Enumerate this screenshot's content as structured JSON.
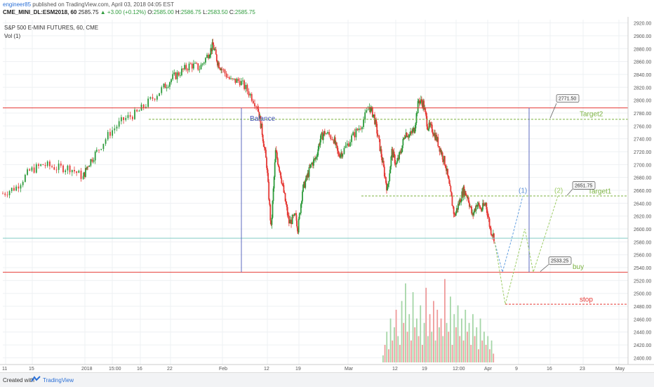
{
  "header": {
    "author": "engineer85",
    "published": " published on TradingView.com, April 03, 2018 04:05 EST",
    "symbol": "CME_MINI_DL:ESM2018, 60",
    "last": "2585.75",
    "change": "▲ +3.00 (+0.12%)",
    "o_label": "O:",
    "o_value": "2585.00",
    "h_label": "H:",
    "h_value": "2586.75",
    "l_label": "L:",
    "l_value": "2583.50",
    "c_label": "C:",
    "c_value": "2585.75"
  },
  "chart_data": {
    "type": "candlestick",
    "title": "S&P 500 E-MINI FUTURES, 60, CME",
    "volume_label": "Vol (1)",
    "ylim": [
      2395,
      2925
    ],
    "y_ticks": [
      "2920.00",
      "2900.00",
      "2880.00",
      "2860.00",
      "2840.00",
      "2820.00",
      "2800.00",
      "2780.00",
      "2760.00",
      "2740.00",
      "2720.00",
      "2700.00",
      "2680.00",
      "2660.00",
      "2640.00",
      "2620.00",
      "2600.00",
      "2580.00",
      "2560.00",
      "2540.00",
      "2520.00",
      "2500.00",
      "2480.00",
      "2460.00",
      "2440.00",
      "2420.00",
      "2400.00"
    ],
    "x_ticks": [
      "11",
      "15",
      "2018",
      "15:00",
      "16",
      "22",
      "Feb",
      "12",
      "19",
      "Mar",
      "12",
      "19",
      "12:00",
      "Apr",
      "9",
      "16",
      "23",
      "May"
    ],
    "price_path": [
      [
        0,
        2655
      ],
      [
        0.03,
        2665
      ],
      [
        0.06,
        2690
      ],
      [
        0.09,
        2700
      ],
      [
        0.12,
        2695
      ],
      [
        0.15,
        2695
      ],
      [
        0.18,
        2680
      ],
      [
        0.19,
        2700
      ],
      [
        0.21,
        2720
      ],
      [
        0.24,
        2750
      ],
      [
        0.27,
        2770
      ],
      [
        0.3,
        2780
      ],
      [
        0.33,
        2800
      ],
      [
        0.36,
        2820
      ],
      [
        0.38,
        2835
      ],
      [
        0.4,
        2845
      ],
      [
        0.42,
        2855
      ],
      [
        0.44,
        2850
      ],
      [
        0.46,
        2872
      ],
      [
        0.47,
        2885
      ],
      [
        0.48,
        2860
      ],
      [
        0.49,
        2848
      ],
      [
        0.51,
        2830
      ],
      [
        0.53,
        2830
      ],
      [
        0.55,
        2812
      ],
      [
        0.57,
        2790
      ],
      [
        0.58,
        2750
      ],
      [
        0.59,
        2700
      ],
      [
        0.6,
        2600
      ],
      [
        0.61,
        2720
      ],
      [
        0.62,
        2690
      ],
      [
        0.63,
        2650
      ],
      [
        0.64,
        2610
      ],
      [
        0.655,
        2620
      ],
      [
        0.66,
        2600
      ],
      [
        0.67,
        2660
      ],
      [
        0.68,
        2680
      ],
      [
        0.69,
        2700
      ],
      [
        0.7,
        2710
      ],
      [
        0.71,
        2740
      ],
      [
        0.72,
        2750
      ],
      [
        0.74,
        2740
      ],
      [
        0.75,
        2715
      ],
      [
        0.76,
        2720
      ],
      [
        0.78,
        2742
      ],
      [
        0.8,
        2760
      ],
      [
        0.82,
        2790
      ],
      [
        0.83,
        2775
      ],
      [
        0.84,
        2740
      ],
      [
        0.85,
        2700
      ],
      [
        0.86,
        2660
      ],
      [
        0.87,
        2720
      ],
      [
        0.88,
        2700
      ],
      [
        0.89,
        2720
      ],
      [
        0.9,
        2750
      ],
      [
        0.91,
        2745
      ],
      [
        0.92,
        2755
      ],
      [
        0.93,
        2800
      ],
      [
        0.94,
        2795
      ],
      [
        0.95,
        2760
      ],
      [
        0.96,
        2755
      ],
      [
        0.97,
        2740
      ],
      [
        0.98,
        2720
      ],
      [
        0.99,
        2700
      ],
      [
        1,
        2660
      ],
      [
        1.01,
        2620
      ],
      [
        1.02,
        2640
      ],
      [
        1.03,
        2660
      ],
      [
        1.04,
        2650
      ],
      [
        1.05,
        2620
      ],
      [
        1.06,
        2640
      ],
      [
        1.07,
        2630
      ],
      [
        1.08,
        2640
      ],
      [
        1.09,
        2600
      ],
      [
        1.1,
        2585
      ]
    ],
    "volume": [
      0.08,
      0.2,
      0.35,
      0.15,
      0.5,
      0.25,
      0.4,
      0.6,
      0.3,
      0.2,
      0.7,
      0.45,
      0.9,
      0.35,
      0.55,
      0.25,
      0.8,
      0.4,
      0.5,
      0.3,
      0.65,
      0.2,
      0.45,
      0.85,
      0.3,
      0.55,
      0.35,
      0.7,
      0.25,
      0.6,
      0.4,
      0.5,
      0.3,
      0.95,
      0.45,
      0.35,
      0.75,
      0.2,
      0.55,
      0.4,
      0.65,
      0.3,
      0.5,
      0.25,
      0.6,
      0.35,
      0.45,
      0.2,
      0.55,
      0.3,
      0.4,
      0.15,
      0.5,
      0.25,
      0.35,
      0.2,
      0.3,
      0.15,
      0.25,
      0.1
    ],
    "levels": [
      {
        "name": "balance-top-line",
        "price": 2788,
        "color": "#e53935",
        "label": "2788.00"
      },
      {
        "name": "target2-line",
        "price": 2770.25,
        "color": "#7cb342",
        "label": "2770.25",
        "dashed": true
      },
      {
        "name": "target1-line",
        "price": 2651.25,
        "color": "#7cb342",
        "label": "2651.25",
        "dashed": true
      },
      {
        "name": "current-price-line",
        "price": 2585.75,
        "color": "#80cbc4",
        "label": "2585.75"
      },
      {
        "name": "buy-line",
        "price": 2532.75,
        "color": "#e53935",
        "label": "2532.75"
      },
      {
        "name": "stop-line",
        "price": 2483.25,
        "color": "#e53935",
        "label": "2483.25",
        "dashed": true
      }
    ],
    "annotations": {
      "balance": "Balance",
      "target2": "Target2",
      "target1": "Target1",
      "buy": "buy",
      "stop": "stop",
      "path1": "(1)",
      "path2": "(2)",
      "callout_target2": "2771.50",
      "callout_target1": "2651.75",
      "callout_buy": "2533.25"
    },
    "colors": {
      "up": "#2e9b3c",
      "down": "#e53935",
      "price_axis_text": "#555",
      "balance_line": "#5c6bc0",
      "path": "#64a0e0",
      "path2": "#9ccc65"
    }
  },
  "footer": {
    "created_with": "Created with",
    "brand": "TradingView"
  }
}
